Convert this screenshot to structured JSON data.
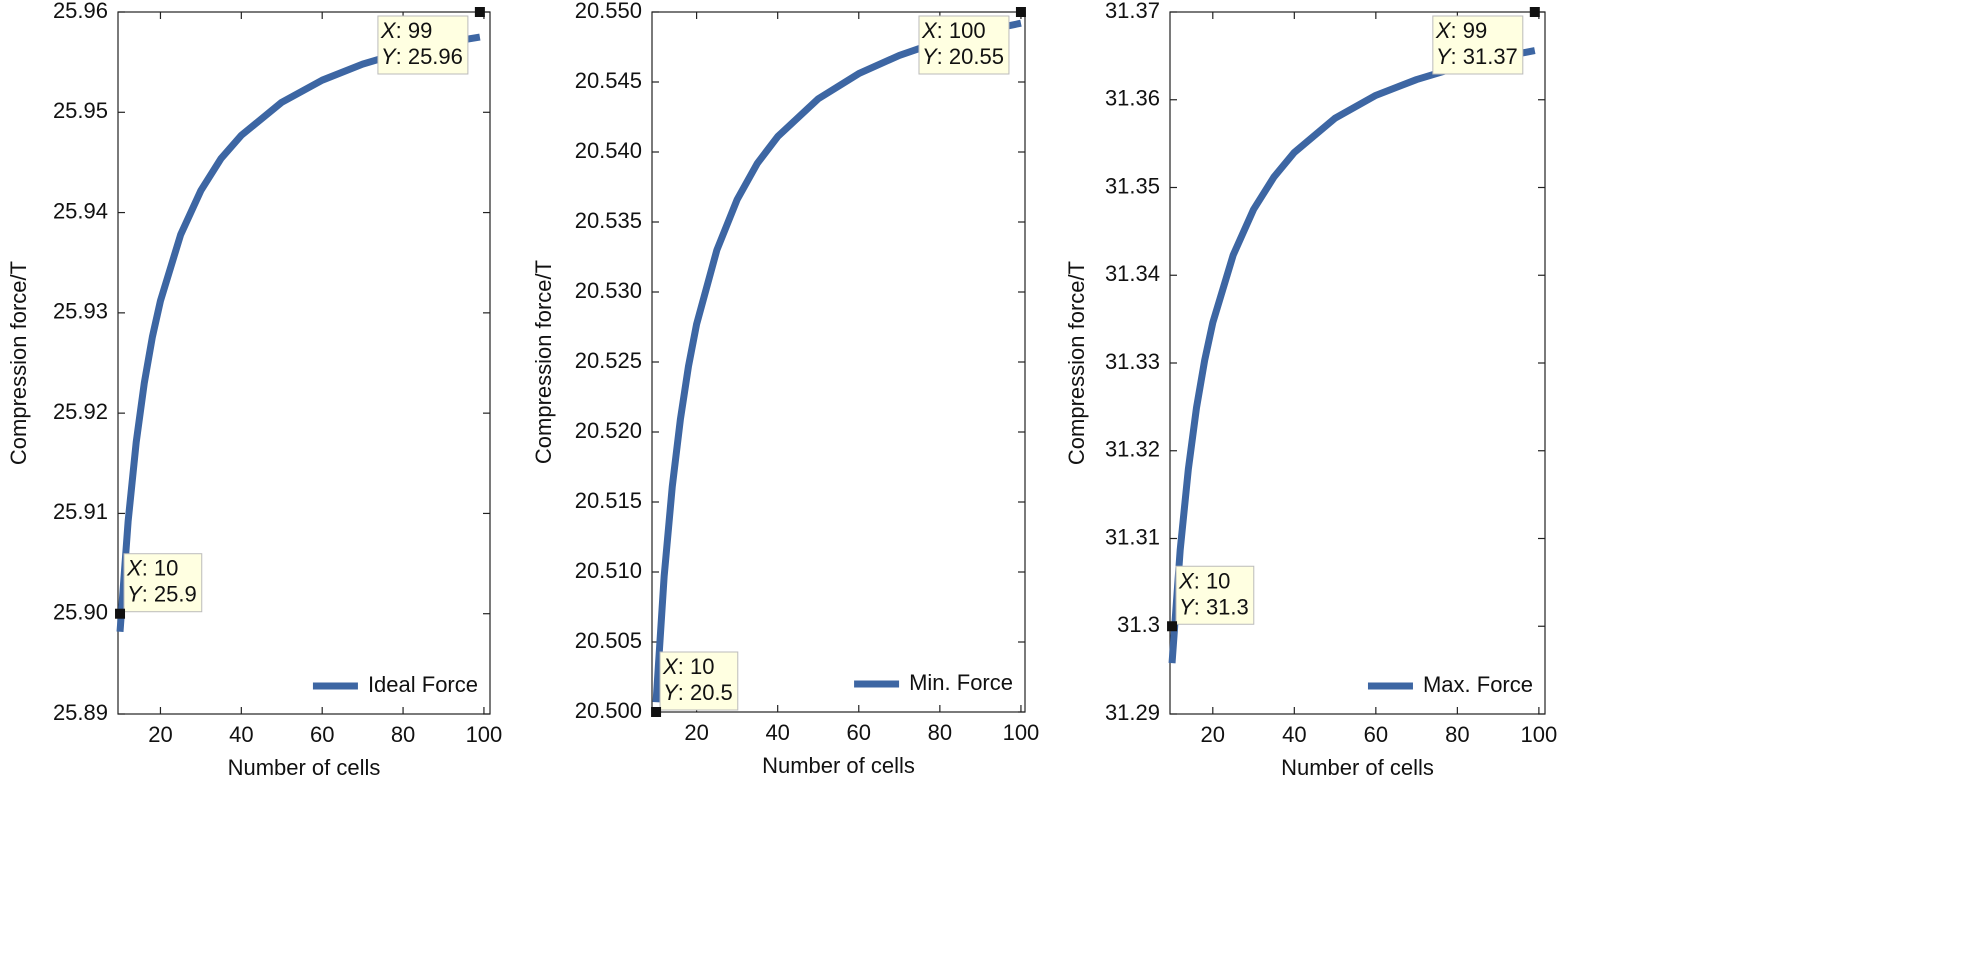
{
  "chart_data": [
    {
      "type": "line",
      "xlabel": "Number of cells",
      "ylabel": "Compression force/T",
      "x": [
        10,
        12,
        14,
        16,
        18,
        20,
        25,
        30,
        35,
        40,
        50,
        60,
        70,
        80,
        90,
        99
      ],
      "series": [
        {
          "name": "Ideal Force",
          "color": "#3d66a3",
          "values": [
            25.8982,
            25.9092,
            25.9171,
            25.923,
            25.9276,
            25.9312,
            25.9378,
            25.9422,
            25.9454,
            25.9477,
            25.951,
            25.9532,
            25.9548,
            25.956,
            25.9569,
            25.9575
          ]
        }
      ],
      "xlim": [
        9.5,
        101.5
      ],
      "ylim": [
        25.89,
        25.96
      ],
      "xticks": [
        20,
        40,
        60,
        80,
        100
      ],
      "yticks": [
        {
          "value": 25.89,
          "label": "25.89"
        },
        {
          "value": 25.9,
          "label": "25.90"
        },
        25.91,
        25.92,
        25.93,
        25.94,
        25.95,
        25.96
      ],
      "legend": "lower right",
      "annotations": [
        {
          "x": 10,
          "y": 25.9,
          "labels": [
            "X: 10",
            "Y: 25.9"
          ]
        },
        {
          "x": 99,
          "y": 25.96,
          "labels": [
            "X: 99",
            "Y: 25.96"
          ]
        }
      ]
    },
    {
      "type": "line",
      "xlabel": "Number of cells",
      "ylabel": "Compression force/T",
      "x": [
        10,
        12,
        14,
        16,
        18,
        20,
        25,
        30,
        35,
        40,
        50,
        60,
        70,
        80,
        90,
        100
      ],
      "series": [
        {
          "name": "Min. Force",
          "color": "#3d66a3",
          "values": [
            20.5007,
            20.5097,
            20.5161,
            20.5209,
            20.5247,
            20.5277,
            20.533,
            20.5366,
            20.5392,
            20.5411,
            20.5438,
            20.5456,
            20.5469,
            20.5479,
            20.5486,
            20.5492
          ]
        }
      ],
      "xlim": [
        9,
        101
      ],
      "ylim": [
        20.5,
        20.55
      ],
      "xticks": [
        20,
        40,
        60,
        80,
        100
      ],
      "yticks": [
        {
          "value": 20.5,
          "label": "20.500"
        },
        20.505,
        {
          "value": 20.51,
          "label": "20.510"
        },
        20.515,
        {
          "value": 20.52,
          "label": "20.520"
        },
        20.525,
        {
          "value": 20.53,
          "label": "20.530"
        },
        20.535,
        {
          "value": 20.54,
          "label": "20.540"
        },
        20.545,
        {
          "value": 20.55,
          "label": "20.550"
        }
      ],
      "legend": "lower right",
      "annotations": [
        {
          "x": 10,
          "y": 20.5,
          "labels": [
            "X: 10",
            "Y: 20.5"
          ]
        },
        {
          "x": 100,
          "y": 20.55,
          "labels": [
            "X: 100",
            "Y: 20.55"
          ]
        }
      ]
    },
    {
      "type": "line",
      "xlabel": "Number of cells",
      "ylabel": "Compression force/T",
      "x": [
        10,
        12,
        14,
        16,
        18,
        20,
        25,
        30,
        35,
        40,
        50,
        60,
        70,
        80,
        90,
        99
      ],
      "series": [
        {
          "name": "Max. Force",
          "color": "#3d66a3",
          "values": [
            31.2958,
            31.3087,
            31.3179,
            31.3249,
            31.3303,
            31.3346,
            31.3423,
            31.3475,
            31.3512,
            31.354,
            31.3579,
            31.3605,
            31.3623,
            31.3637,
            31.3648,
            31.3656
          ]
        }
      ],
      "xlim": [
        9.5,
        101.5
      ],
      "ylim": [
        31.29,
        31.37
      ],
      "xticks": [
        20,
        40,
        60,
        80,
        100
      ],
      "yticks": [
        31.29,
        31.3,
        31.31,
        31.32,
        31.33,
        31.34,
        31.35,
        31.36,
        31.37
      ],
      "legend": "lower right",
      "annotations": [
        {
          "x": 10,
          "y": 31.3,
          "labels": [
            "X: 10",
            "Y: 31.3"
          ]
        },
        {
          "x": 99,
          "y": 31.37,
          "labels": [
            "X: 99",
            "Y: 31.37"
          ]
        }
      ]
    }
  ]
}
